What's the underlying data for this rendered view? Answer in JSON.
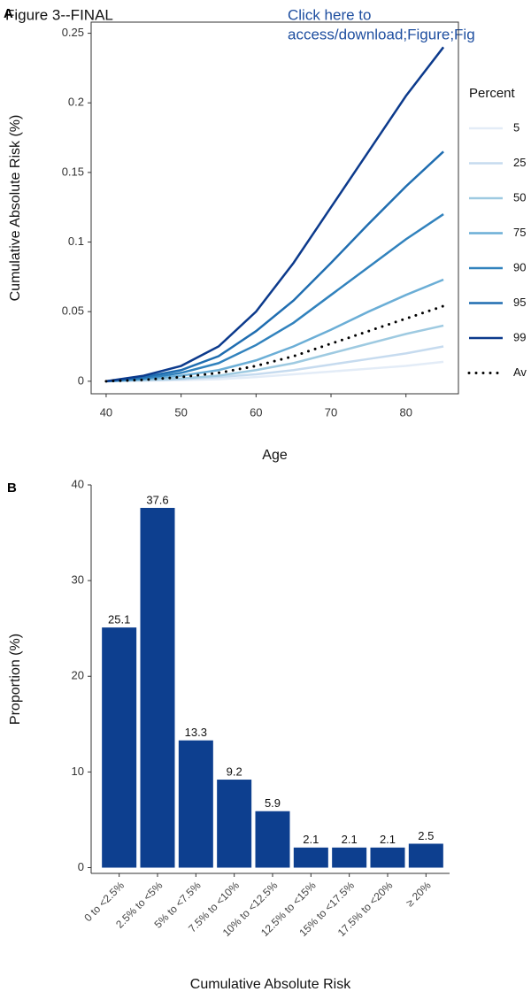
{
  "header": {
    "figure": "Figure 3--FINAL",
    "link": [
      "Click here to",
      "access/download;Figure;Fig"
    ]
  },
  "chart_data": [
    {
      "type": "line",
      "panel": "A",
      "x_label": "Age",
      "y_label": "Cumulative Absolute Risk (%)",
      "x": [
        40,
        45,
        50,
        55,
        60,
        65,
        70,
        75,
        80,
        85
      ],
      "xlim": [
        38,
        87
      ],
      "xticks": [
        40,
        50,
        60,
        70,
        80
      ],
      "ylim": [
        -0.009,
        0.258
      ],
      "yticks": [
        0,
        0.05,
        0.1,
        0.15,
        0.2,
        0.25
      ],
      "legend_title": "Percent",
      "legend": "right",
      "frame": true,
      "series": [
        {
          "name": "5",
          "color": "#e3ecf7",
          "values": [
            0,
            0.0003,
            0.0008,
            0.0015,
            0.003,
            0.005,
            0.007,
            0.009,
            0.011,
            0.014
          ]
        },
        {
          "name": "25",
          "color": "#c6dbef",
          "values": [
            0,
            0.0005,
            0.0015,
            0.003,
            0.005,
            0.008,
            0.012,
            0.016,
            0.02,
            0.025
          ]
        },
        {
          "name": "50",
          "color": "#9ecae1",
          "values": [
            0,
            0.001,
            0.002,
            0.004,
            0.008,
            0.013,
            0.02,
            0.027,
            0.034,
            0.04
          ]
        },
        {
          "name": "75",
          "color": "#6baed6",
          "values": [
            0,
            0.0015,
            0.004,
            0.008,
            0.015,
            0.025,
            0.037,
            0.05,
            0.062,
            0.073
          ]
        },
        {
          "name": "90",
          "color": "#3182bd",
          "values": [
            0,
            0.002,
            0.006,
            0.013,
            0.026,
            0.042,
            0.062,
            0.082,
            0.102,
            0.12
          ]
        },
        {
          "name": "95",
          "color": "#1f6db0",
          "values": [
            0,
            0.003,
            0.008,
            0.018,
            0.036,
            0.058,
            0.085,
            0.113,
            0.14,
            0.165
          ]
        },
        {
          "name": "99",
          "color": "#0c3a8c",
          "values": [
            0,
            0.004,
            0.011,
            0.025,
            0.05,
            0.085,
            0.125,
            0.165,
            0.205,
            0.24
          ]
        },
        {
          "name": "Av",
          "color": "#000000",
          "style": "dotted",
          "values": [
            0,
            0.001,
            0.003,
            0.006,
            0.011,
            0.018,
            0.027,
            0.036,
            0.045,
            0.054
          ]
        }
      ]
    },
    {
      "type": "bar",
      "panel": "B",
      "x_label": "Cumulative Absolute Risk",
      "y_label": "Proportion (%)",
      "categories": [
        "0 to <2.5%",
        "2.5% to <5%",
        "5% to <7.5%",
        "7.5% to <10%",
        "10% to <12.5%",
        "12.5% to <15%",
        "15% to <17.5%",
        "17.5% to <20%",
        "≥ 20%"
      ],
      "values": [
        25.1,
        37.6,
        13.3,
        9.2,
        5.9,
        2.1,
        2.1,
        2.1,
        2.5
      ],
      "color": "#0d3f8f",
      "ylim": [
        -0.6,
        40
      ],
      "yticks": [
        0,
        10,
        20,
        30,
        40
      ],
      "frame": false
    }
  ]
}
